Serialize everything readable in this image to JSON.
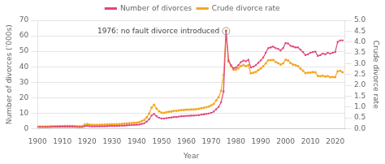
{
  "chart_data": {
    "type": "line",
    "xlabel": "Year",
    "ylabel": "Number of divorces (’000s)",
    "y2label": "Crude divorce rate",
    "xlim": [
      1900,
      2024
    ],
    "xticks": [
      1900,
      1910,
      1920,
      1930,
      1940,
      1950,
      1960,
      1970,
      1980,
      1990,
      2000,
      2010,
      2020
    ],
    "ylim": [
      0,
      70
    ],
    "yticks": [
      0,
      10,
      20,
      30,
      40,
      50,
      60,
      70
    ],
    "y2lim": [
      0.0,
      5.0
    ],
    "y2ticks": [
      {
        "value": 0.0,
        "label": "0.0"
      },
      0.5,
      {
        "value": 1.0,
        "label": "1.0"
      },
      1.5,
      {
        "value": 2.0,
        "label": "2.0"
      },
      2.5,
      {
        "value": 3.0,
        "label": "3.0"
      },
      3.5,
      {
        "value": 4.0,
        "label": "4.0"
      },
      4.5,
      {
        "value": 5.0,
        "label": "5.0"
      }
    ],
    "grid": "y",
    "legend": "top",
    "annotations": [
      {
        "text": "1976: no fault divorce introduced",
        "x": 1976,
        "y": 63.0
      }
    ],
    "x": [
      1900,
      1901,
      1902,
      1903,
      1904,
      1905,
      1906,
      1907,
      1908,
      1909,
      1910,
      1911,
      1912,
      1913,
      1914,
      1915,
      1916,
      1917,
      1918,
      1919,
      1920,
      1921,
      1922,
      1923,
      1924,
      1925,
      1926,
      1927,
      1928,
      1929,
      1930,
      1931,
      1932,
      1933,
      1934,
      1935,
      1936,
      1937,
      1938,
      1939,
      1940,
      1941,
      1942,
      1943,
      1944,
      1945,
      1946,
      1947,
      1948,
      1949,
      1950,
      1951,
      1952,
      1953,
      1954,
      1955,
      1956,
      1957,
      1958,
      1959,
      1960,
      1961,
      1962,
      1963,
      1964,
      1965,
      1966,
      1967,
      1968,
      1969,
      1970,
      1971,
      1972,
      1973,
      1974,
      1975,
      1976,
      1977,
      1978,
      1979,
      1980,
      1981,
      1982,
      1983,
      1984,
      1985,
      1986,
      1987,
      1988,
      1989,
      1990,
      1991,
      1992,
      1993,
      1994,
      1995,
      1996,
      1997,
      1998,
      1999,
      2000,
      2001,
      2002,
      2003,
      2004,
      2005,
      2006,
      2007,
      2008,
      2009,
      2010,
      2011,
      2012,
      2013,
      2014,
      2015,
      2016,
      2017,
      2018,
      2019,
      2020,
      2021,
      2022,
      2023
    ],
    "series": [
      {
        "name": "Number of divorces",
        "color": "#e0457b",
        "marker": "square",
        "values": [
          1.0,
          1.0,
          1.0,
          1.0,
          1.0,
          1.0,
          1.1,
          1.1,
          1.1,
          1.2,
          1.2,
          1.2,
          1.2,
          1.2,
          1.2,
          1.1,
          1.0,
          1.0,
          1.0,
          1.5,
          1.8,
          1.5,
          1.4,
          1.4,
          1.4,
          1.4,
          1.5,
          1.5,
          1.6,
          1.7,
          1.7,
          1.7,
          1.7,
          1.8,
          1.9,
          2.0,
          2.1,
          2.2,
          2.3,
          2.4,
          2.5,
          2.6,
          3.0,
          3.5,
          4.5,
          6.0,
          8.5,
          9.5,
          8.0,
          7.0,
          6.5,
          6.5,
          6.8,
          7.0,
          7.2,
          7.5,
          7.5,
          7.8,
          8.0,
          8.0,
          8.2,
          8.3,
          8.4,
          8.4,
          8.6,
          8.7,
          9.0,
          9.2,
          9.5,
          9.8,
          10.2,
          11.0,
          12.5,
          14.0,
          17.0,
          24.0,
          63.0,
          44.0,
          41.0,
          39.0,
          39.5,
          41.0,
          43.0,
          44.0,
          43.5,
          44.5,
          39.5,
          40.0,
          41.0,
          42.5,
          44.0,
          46.0,
          49.0,
          52.0,
          52.5,
          53.0,
          52.0,
          51.5,
          50.5,
          52.0,
          55.3,
          55.0,
          53.5,
          53.0,
          52.5,
          52.5,
          51.0,
          49.5,
          47.5,
          48.0,
          49.0,
          49.5,
          49.8,
          47.0,
          47.5,
          48.5,
          48.0,
          49.0,
          48.5,
          49.0,
          49.5,
          56.0,
          57.0,
          57.0
        ]
      },
      {
        "name": "Crude divorce rate",
        "color": "#f5a623",
        "marker": "circle",
        "axis": "y2",
        "values": [
          0.1,
          0.1,
          0.1,
          0.1,
          0.1,
          0.11,
          0.11,
          0.11,
          0.12,
          0.12,
          0.12,
          0.13,
          0.13,
          0.13,
          0.13,
          0.12,
          0.11,
          0.11,
          0.11,
          0.18,
          0.21,
          0.18,
          0.17,
          0.17,
          0.17,
          0.17,
          0.18,
          0.18,
          0.19,
          0.19,
          0.2,
          0.2,
          0.2,
          0.21,
          0.22,
          0.23,
          0.24,
          0.25,
          0.26,
          0.27,
          0.28,
          0.3,
          0.35,
          0.4,
          0.52,
          0.7,
          0.97,
          1.1,
          0.92,
          0.8,
          0.74,
          0.73,
          0.76,
          0.78,
          0.79,
          0.82,
          0.82,
          0.84,
          0.86,
          0.86,
          0.88,
          0.88,
          0.89,
          0.89,
          0.9,
          0.91,
          0.94,
          0.96,
          0.99,
          1.02,
          1.07,
          1.14,
          1.3,
          1.45,
          1.75,
          2.48,
          4.53,
          3.1,
          2.88,
          2.72,
          2.72,
          2.79,
          2.89,
          2.94,
          2.88,
          2.93,
          2.55,
          2.58,
          2.62,
          2.7,
          2.78,
          2.88,
          3.01,
          3.15,
          3.16,
          3.17,
          3.08,
          3.02,
          2.96,
          3.01,
          3.18,
          3.14,
          3.03,
          2.96,
          2.93,
          2.89,
          2.77,
          2.68,
          2.56,
          2.58,
          2.59,
          2.61,
          2.6,
          2.43,
          2.42,
          2.44,
          2.4,
          2.42,
          2.38,
          2.39,
          2.38,
          2.65,
          2.67,
          2.6
        ]
      }
    ]
  }
}
